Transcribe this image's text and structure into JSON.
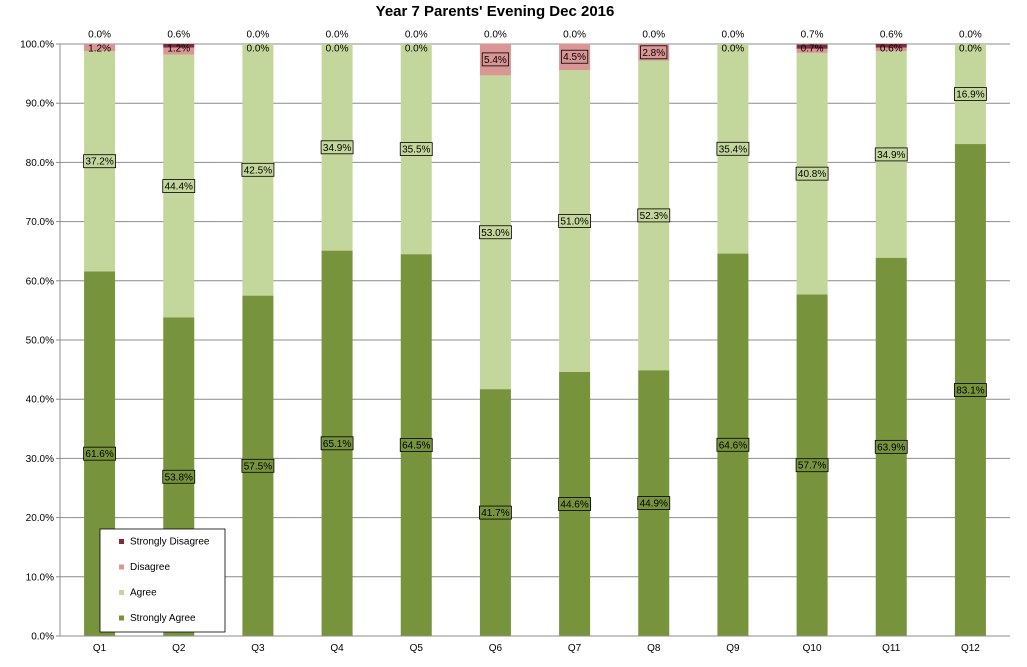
{
  "chart_data": {
    "type": "bar",
    "stacked": true,
    "title": "Year 7 Parents' Evening Dec 2016",
    "categories": [
      "Q1",
      "Q2",
      "Q3",
      "Q4",
      "Q5",
      "Q6",
      "Q7",
      "Q8",
      "Q9",
      "Q10",
      "Q11",
      "Q12"
    ],
    "series": [
      {
        "name": "Strongly Agree",
        "color": "#77933c",
        "values": [
          61.6,
          53.8,
          57.5,
          65.1,
          64.5,
          41.7,
          44.6,
          44.9,
          64.6,
          57.7,
          63.9,
          83.1
        ]
      },
      {
        "name": "Agree",
        "color": "#c3d69b",
        "values": [
          37.2,
          44.4,
          42.5,
          34.9,
          35.5,
          53.0,
          51.0,
          52.3,
          35.4,
          40.8,
          34.9,
          16.9
        ]
      },
      {
        "name": "Disagree",
        "color": "#d99694",
        "values": [
          1.2,
          1.2,
          0.0,
          0.0,
          0.0,
          5.4,
          4.5,
          2.8,
          0.0,
          0.7,
          0.6,
          0.0
        ]
      },
      {
        "name": "Strongly Disagree",
        "color": "#7b2c3b",
        "values": [
          0.0,
          0.6,
          0.0,
          0.0,
          0.0,
          0.0,
          0.0,
          0.0,
          0.0,
          0.7,
          0.6,
          0.0
        ]
      }
    ],
    "ylim": [
      0,
      100
    ],
    "yticks": [
      "0.0%",
      "10.0%",
      "20.0%",
      "30.0%",
      "40.0%",
      "50.0%",
      "60.0%",
      "70.0%",
      "80.0%",
      "90.0%",
      "100.0%"
    ],
    "grid": true,
    "legend_position": "bottom-left",
    "legend_order": [
      "Strongly Disagree",
      "Disagree",
      "Agree",
      "Strongly Agree"
    ]
  }
}
